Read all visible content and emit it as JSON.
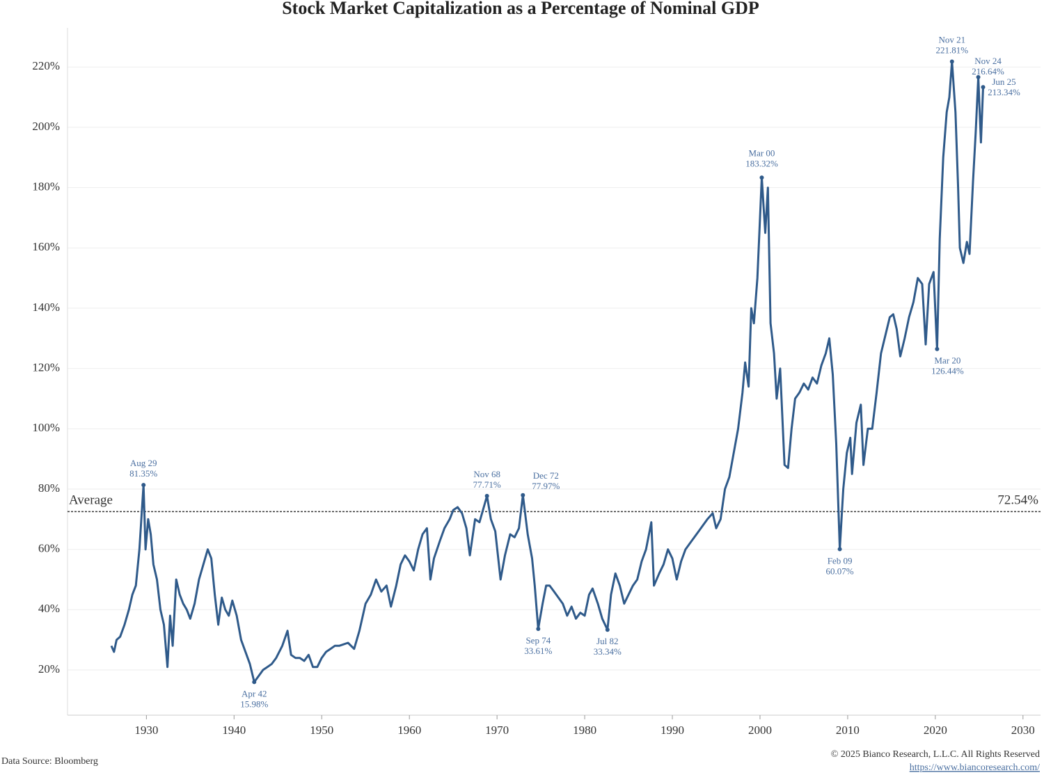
{
  "chart_data": {
    "type": "line",
    "title": "Stock Market Capitalization as a Percentage of Nominal GDP",
    "color": "#2f5a8a",
    "xlim": [
      1921,
      2032
    ],
    "ylim": [
      5,
      233
    ],
    "xticks": [
      1930,
      1940,
      1950,
      1960,
      1970,
      1980,
      1990,
      2000,
      2010,
      2020,
      2030
    ],
    "yticks": [
      {
        "value": 20,
        "label": "20%"
      },
      {
        "value": 40,
        "label": "40%"
      },
      {
        "value": 60,
        "label": "60%"
      },
      {
        "value": 80,
        "label": "80%"
      },
      {
        "value": 100,
        "label": "100%"
      },
      {
        "value": 120,
        "label": "120%"
      },
      {
        "value": 140,
        "label": "140%"
      },
      {
        "value": 160,
        "label": "160%"
      },
      {
        "value": 180,
        "label": "180%"
      },
      {
        "value": 200,
        "label": "200%"
      },
      {
        "value": 220,
        "label": "220%"
      }
    ],
    "grid": true,
    "average": {
      "label": "Average",
      "value": 72.54,
      "value_label": "72.54%"
    },
    "x": [
      1926.0,
      1926.3,
      1926.6,
      1927.0,
      1927.5,
      1928.0,
      1928.4,
      1928.8,
      1929.2,
      1929.67,
      1929.9,
      1930.2,
      1930.5,
      1930.8,
      1931.2,
      1931.6,
      1932.0,
      1932.4,
      1932.7,
      1933.0,
      1933.4,
      1933.8,
      1934.2,
      1934.6,
      1935.0,
      1935.5,
      1936.0,
      1936.5,
      1937.0,
      1937.4,
      1937.8,
      1938.2,
      1938.6,
      1939.0,
      1939.4,
      1939.8,
      1940.3,
      1940.8,
      1941.3,
      1941.8,
      1942.3,
      1942.8,
      1943.3,
      1943.8,
      1944.3,
      1944.8,
      1945.5,
      1946.1,
      1946.5,
      1947.0,
      1947.5,
      1948.0,
      1948.5,
      1949.0,
      1949.5,
      1950.0,
      1950.5,
      1951.0,
      1951.5,
      1952.0,
      1953.0,
      1953.7,
      1954.3,
      1955.0,
      1955.6,
      1956.2,
      1956.8,
      1957.4,
      1957.9,
      1958.5,
      1959.0,
      1959.5,
      1960.0,
      1960.5,
      1961.0,
      1961.5,
      1962.0,
      1962.4,
      1962.8,
      1963.5,
      1964.0,
      1964.6,
      1965.0,
      1965.5,
      1966.0,
      1966.5,
      1966.9,
      1967.5,
      1968.0,
      1968.85,
      1969.3,
      1969.8,
      1970.4,
      1970.9,
      1971.5,
      1972.0,
      1972.5,
      1972.95,
      1973.5,
      1974.0,
      1974.3,
      1974.7,
      1975.2,
      1975.6,
      1976.0,
      1976.5,
      1977.0,
      1977.5,
      1978.0,
      1978.5,
      1979.0,
      1979.5,
      1980.0,
      1980.5,
      1980.9,
      1981.5,
      1982.0,
      1982.6,
      1983.0,
      1983.5,
      1984.0,
      1984.5,
      1985.0,
      1985.5,
      1986.0,
      1986.5,
      1987.0,
      1987.6,
      1987.9,
      1988.5,
      1989.0,
      1989.5,
      1990.0,
      1990.5,
      1991.0,
      1991.5,
      1992.0,
      1993.0,
      1993.5,
      1994.0,
      1994.6,
      1995.0,
      1995.5,
      1996.0,
      1996.5,
      1997.0,
      1997.5,
      1998.0,
      1998.3,
      1998.7,
      1999.0,
      1999.3,
      1999.7,
      2000.2,
      2000.6,
      2000.9,
      2001.2,
      2001.6,
      2001.9,
      2002.3,
      2002.8,
      2003.2,
      2003.6,
      2004.0,
      2004.5,
      2005.0,
      2005.5,
      2006.0,
      2006.5,
      2007.0,
      2007.5,
      2007.9,
      2008.3,
      2008.7,
      2009.1,
      2009.5,
      2009.9,
      2010.3,
      2010.5,
      2011.0,
      2011.5,
      2011.8,
      2012.3,
      2012.8,
      2013.3,
      2013.8,
      2014.3,
      2014.8,
      2015.2,
      2015.6,
      2016.0,
      2016.5,
      2017.0,
      2017.5,
      2018.0,
      2018.5,
      2018.9,
      2019.3,
      2019.8,
      2020.2,
      2020.5,
      2020.9,
      2021.3,
      2021.6,
      2021.9,
      2022.3,
      2022.6,
      2022.8,
      2023.2,
      2023.6,
      2023.9,
      2024.3,
      2024.6,
      2024.9,
      2025.2,
      2025.45
    ],
    "values": [
      28,
      26,
      30,
      31,
      35,
      40,
      45,
      48,
      60,
      81.35,
      60,
      70,
      65,
      55,
      50,
      40,
      35,
      21,
      38,
      28,
      50,
      45,
      42,
      40,
      37,
      42,
      50,
      55,
      60,
      57,
      45,
      35,
      44,
      40,
      38,
      43,
      38,
      30,
      26,
      22,
      15.98,
      18,
      20,
      21,
      22,
      24,
      28,
      33,
      25,
      24,
      24,
      23,
      25,
      21,
      21,
      24,
      26,
      27,
      28,
      28,
      29,
      27,
      33,
      42,
      45,
      50,
      46,
      48,
      41,
      48,
      55,
      58,
      56,
      53,
      60,
      65,
      67,
      50,
      57,
      63,
      67,
      70,
      73,
      74,
      72,
      67,
      58,
      70,
      69,
      77.71,
      70,
      66,
      50,
      58,
      65,
      64,
      67,
      77.97,
      65,
      57,
      48,
      33.61,
      42,
      48,
      48,
      46,
      44,
      42,
      38,
      41,
      37,
      39,
      38,
      45,
      47,
      42,
      37,
      33.34,
      45,
      52,
      48,
      42,
      45,
      48,
      50,
      56,
      60,
      69,
      48,
      52,
      55,
      60,
      57,
      50,
      56,
      60,
      62,
      66,
      68,
      70,
      72,
      67,
      70,
      80,
      84,
      92,
      100,
      112,
      122,
      114,
      140,
      135,
      150,
      183.32,
      165,
      180,
      135,
      125,
      110,
      120,
      88,
      87,
      100,
      110,
      112,
      115,
      113,
      117,
      115,
      121,
      125,
      130,
      118,
      95,
      60.07,
      80,
      92,
      97,
      85,
      102,
      108,
      88,
      100,
      100,
      112,
      125,
      131,
      137,
      138,
      133,
      124,
      130,
      137,
      142,
      150,
      148,
      128,
      148,
      152,
      126.44,
      163,
      190,
      205,
      210,
      221.81,
      205,
      180,
      160,
      155,
      162,
      158,
      182,
      198,
      216.64,
      195,
      213.34
    ],
    "annotations": [
      {
        "x": 1929.67,
        "value": 81.35,
        "date": "Aug 29",
        "value_label": "81.35%"
      },
      {
        "x": 1942.3,
        "value": 15.98,
        "date": "Apr 42",
        "value_label": "15.98%"
      },
      {
        "x": 1968.85,
        "value": 77.71,
        "date": "Nov 68",
        "value_label": "77.71%"
      },
      {
        "x": 1972.95,
        "value": 77.97,
        "date": "Dec 72",
        "value_label": "77.97%"
      },
      {
        "x": 1974.7,
        "value": 33.61,
        "date": "Sep 74",
        "value_label": "33.61%"
      },
      {
        "x": 1982.6,
        "value": 33.34,
        "date": "Jul 82",
        "value_label": "33.34%"
      },
      {
        "x": 2000.2,
        "value": 183.32,
        "date": "Mar 00",
        "value_label": "183.32%"
      },
      {
        "x": 2009.1,
        "value": 60.07,
        "date": "Feb 09",
        "value_label": "60.07%"
      },
      {
        "x": 2020.2,
        "value": 126.44,
        "date": "Mar 20",
        "value_label": "126.44%"
      },
      {
        "x": 2021.9,
        "value": 221.81,
        "date": "Nov 21",
        "value_label": "221.81%"
      },
      {
        "x": 2024.9,
        "value": 216.64,
        "date": "Nov 24",
        "value_label": "216.64%"
      },
      {
        "x": 2025.45,
        "value": 213.34,
        "date": "Jun 25",
        "value_label": "213.34%"
      }
    ],
    "source": "Data Source: Bloomberg",
    "copyright": "© 2025 Bianco Research, L.L.C. All Rights Reserved",
    "url": "https://www.biancoresearch.com/"
  }
}
